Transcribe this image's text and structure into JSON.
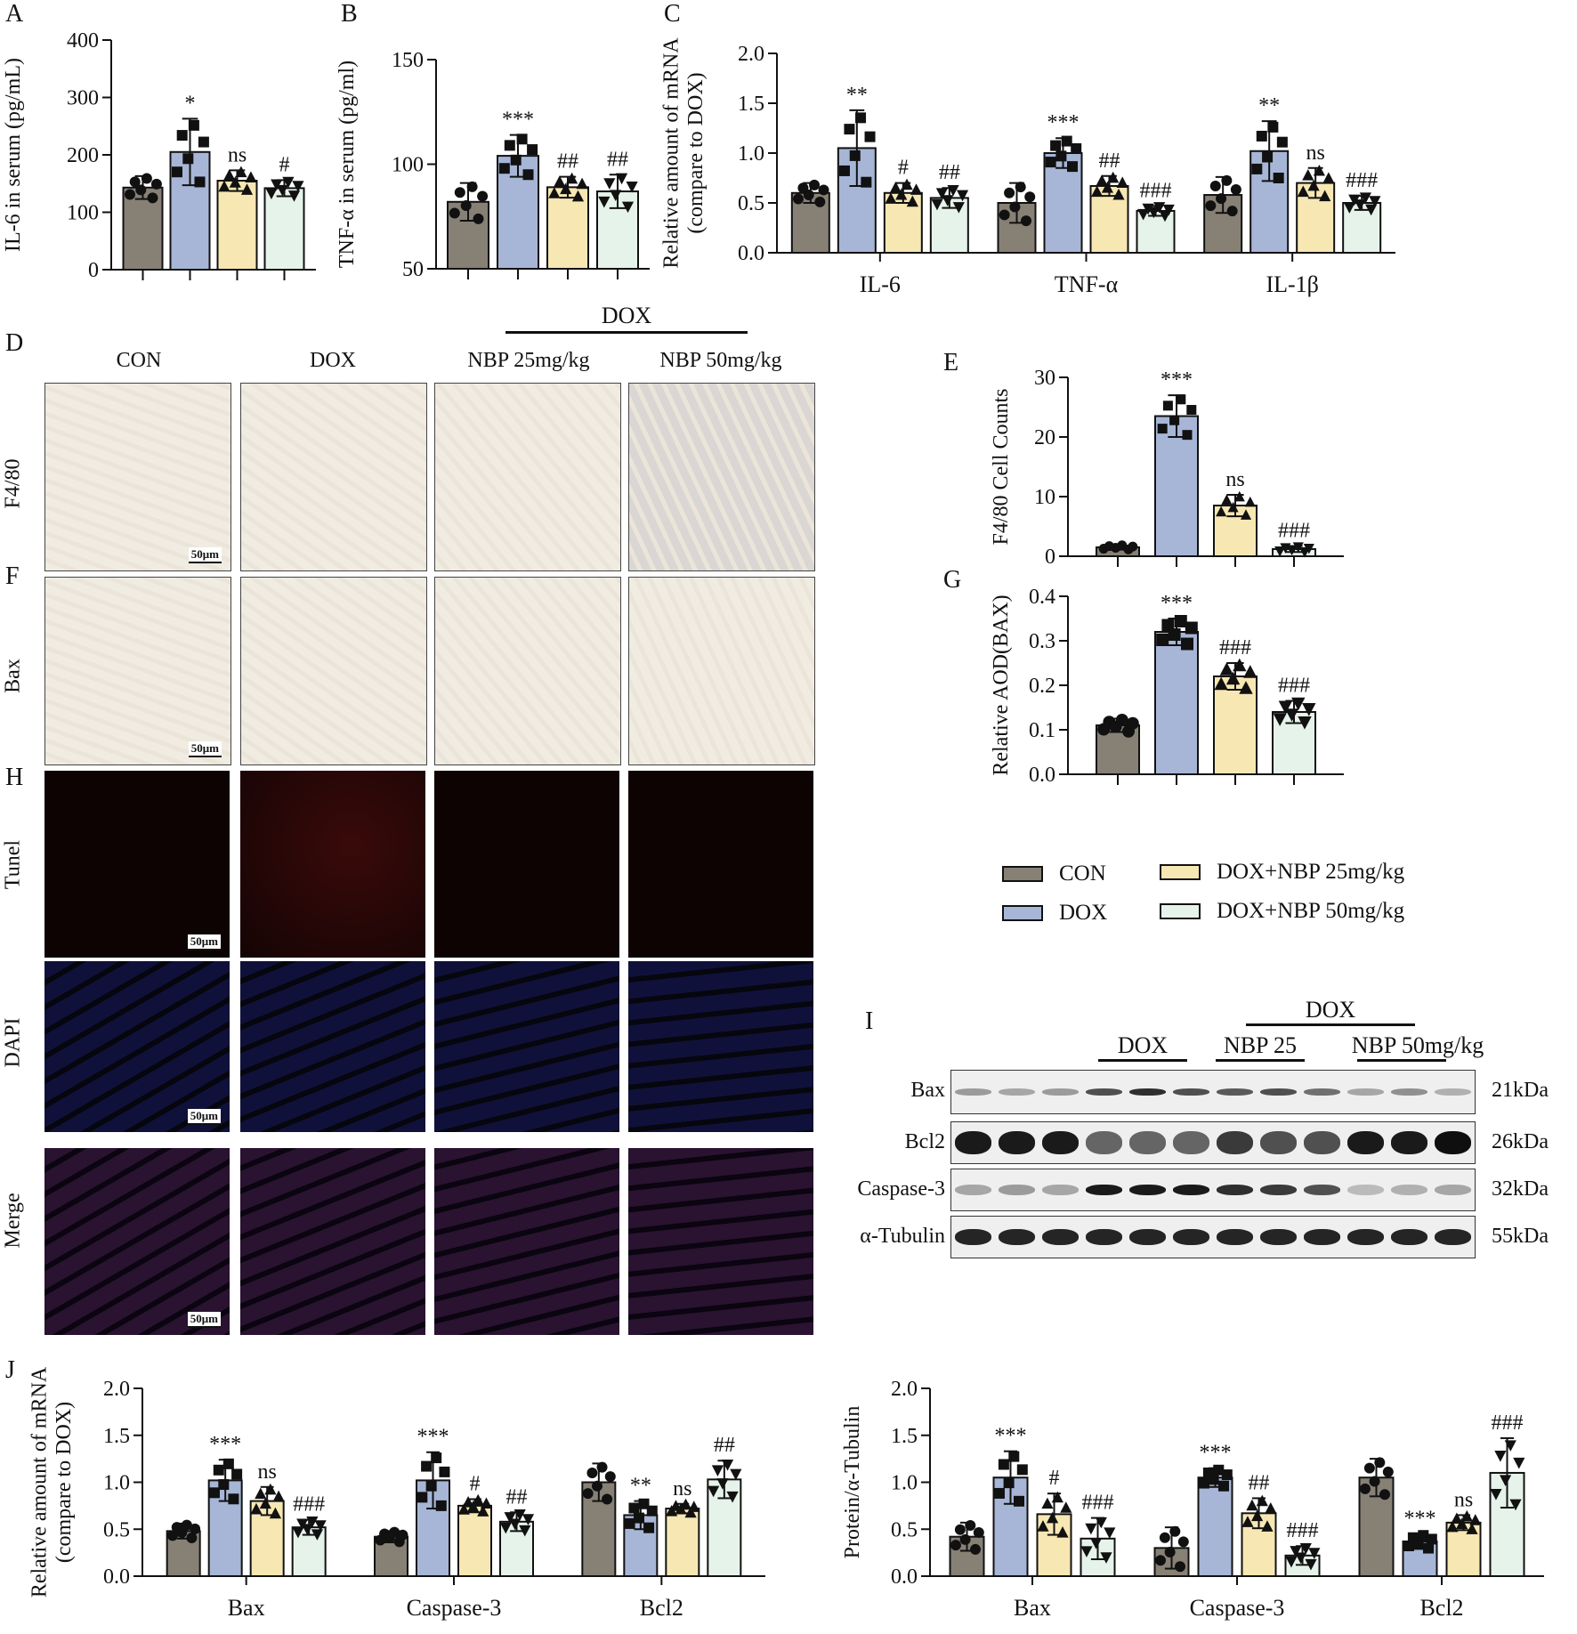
{
  "colors": {
    "CON": "#878075",
    "DOX": "#a7b6d6",
    "NBP25": "#f7e7b3",
    "NBP50": "#e6f3ea"
  },
  "legend": [
    {
      "key": "CON",
      "label": "CON"
    },
    {
      "key": "DOX",
      "label": "DOX"
    },
    {
      "key": "NBP25",
      "label": "DOX+NBP 25mg/kg"
    },
    {
      "key": "NBP50",
      "label": "DOX+NBP 50mg/kg"
    }
  ],
  "panels": {
    "A": "A",
    "B": "B",
    "C": "C",
    "D": "D",
    "E": "E",
    "F": "F",
    "G": "G",
    "H": "H",
    "I": "I",
    "J": "J"
  },
  "micro": {
    "group_bracket": "DOX",
    "columns": [
      "CON",
      "DOX",
      "NBP 25mg/kg",
      "NBP 50mg/kg"
    ],
    "rows": [
      "F4/80",
      "Bax",
      "Tunel",
      "DAPI",
      "Merge"
    ],
    "scale_bar": "50μm"
  },
  "western": {
    "top_group": "DOX",
    "groups": [
      "DOX",
      "NBP 25",
      "NBP 50mg/kg"
    ],
    "proteins": [
      "Bax",
      "Bcl2",
      "Caspase-3",
      "α-Tubulin"
    ],
    "sizes": [
      "21kDa",
      "26kDa",
      "32kDa",
      "55kDa"
    ]
  },
  "chart_data": [
    {
      "id": "A",
      "type": "bar",
      "ylabel": "IL-6 in serum (pg/mL)",
      "ylim": [
        0,
        400
      ],
      "yticks": [
        0,
        100,
        200,
        300,
        400
      ],
      "categories": [
        "CON",
        "DOX",
        "DOX+NBP 25mg/kg",
        "DOX+NBP 50mg/kg"
      ],
      "groups": [
        {
          "name": "",
          "values": [
            143,
            205,
            155,
            142
          ],
          "sd": [
            20,
            58,
            18,
            14
          ],
          "sig": [
            "",
            "*",
            "ns",
            "#"
          ]
        }
      ]
    },
    {
      "id": "B",
      "type": "bar",
      "ylabel": "TNF-α in serum (pg/ml)",
      "ylim": [
        50,
        150
      ],
      "yticks": [
        50,
        100,
        150
      ],
      "categories": [
        "CON",
        "DOX",
        "DOX+NBP 25mg/kg",
        "DOX+NBP 50mg/kg"
      ],
      "groups": [
        {
          "name": "",
          "values": [
            82,
            104,
            89,
            87
          ],
          "sd": [
            9,
            10,
            5,
            8
          ],
          "sig": [
            "",
            "***",
            "##",
            "##"
          ]
        }
      ]
    },
    {
      "id": "C",
      "type": "bar",
      "ylabel": "Relative amount of mRNA (compare to DOX)",
      "ylim": [
        0,
        2
      ],
      "yticks": [
        "0.0",
        "0.5",
        "1.0",
        "1.5",
        "2.0"
      ],
      "categories": [
        "CON",
        "DOX",
        "DOX+NBP 25mg/kg",
        "DOX+NBP 50mg/kg"
      ],
      "groups": [
        {
          "name": "IL-6",
          "values": [
            0.6,
            1.05,
            0.6,
            0.55
          ],
          "sd": [
            0.1,
            0.38,
            0.1,
            0.1
          ],
          "sig": [
            "",
            "**",
            "#",
            "##"
          ]
        },
        {
          "name": "TNF-α",
          "values": [
            0.5,
            1.0,
            0.67,
            0.42
          ],
          "sd": [
            0.2,
            0.15,
            0.1,
            0.05
          ],
          "sig": [
            "",
            "***",
            "##",
            "###"
          ]
        },
        {
          "name": "IL-1β",
          "values": [
            0.58,
            1.02,
            0.7,
            0.5
          ],
          "sd": [
            0.18,
            0.3,
            0.15,
            0.07
          ],
          "sig": [
            "",
            "**",
            "ns",
            "###"
          ]
        }
      ]
    },
    {
      "id": "E",
      "type": "bar",
      "ylabel": "F4/80 Cell Counts",
      "ylim": [
        0,
        30
      ],
      "yticks": [
        0,
        10,
        20,
        30
      ],
      "categories": [
        "CON",
        "DOX",
        "DOX+NBP 25mg/kg",
        "DOX+NBP 50mg/kg"
      ],
      "groups": [
        {
          "name": "",
          "values": [
            1.5,
            23.5,
            8.5,
            1.2
          ],
          "sd": [
            0.4,
            3.5,
            1.8,
            0.5
          ],
          "sig": [
            "",
            "***",
            "ns",
            "###"
          ]
        }
      ]
    },
    {
      "id": "G",
      "type": "bar",
      "ylabel": "Relative AOD(BAX)",
      "ylim": [
        0,
        0.4
      ],
      "yticks": [
        "0.0",
        "0.1",
        "0.2",
        "0.3",
        "0.4"
      ],
      "categories": [
        "CON",
        "DOX",
        "DOX+NBP 25mg/kg",
        "DOX+NBP 50mg/kg"
      ],
      "groups": [
        {
          "name": "",
          "values": [
            0.11,
            0.32,
            0.22,
            0.14
          ],
          "sd": [
            0.015,
            0.03,
            0.03,
            0.025
          ],
          "sig": [
            "",
            "***",
            "###",
            "###"
          ]
        }
      ]
    },
    {
      "id": "J1",
      "type": "bar",
      "ylabel": "Relative amount of mRNA (compare to DOX)",
      "ylim": [
        0,
        2
      ],
      "yticks": [
        "0.0",
        "0.5",
        "1.0",
        "1.5",
        "2.0"
      ],
      "categories": [
        "CON",
        "DOX",
        "DOX+NBP 25mg/kg",
        "DOX+NBP 50mg/kg"
      ],
      "groups": [
        {
          "name": "Bax",
          "values": [
            0.48,
            1.02,
            0.8,
            0.52
          ],
          "sd": [
            0.08,
            0.22,
            0.15,
            0.08
          ],
          "sig": [
            "",
            "***",
            "ns",
            "###"
          ]
        },
        {
          "name": "Caspase-3",
          "values": [
            0.42,
            1.02,
            0.75,
            0.58
          ],
          "sd": [
            0.06,
            0.3,
            0.07,
            0.1
          ],
          "sig": [
            "",
            "***",
            "#",
            "##"
          ]
        },
        {
          "name": "Bcl2",
          "values": [
            1.0,
            0.65,
            0.72,
            1.03
          ],
          "sd": [
            0.2,
            0.15,
            0.05,
            0.2
          ],
          "sig": [
            "",
            "**",
            "ns",
            "##"
          ]
        }
      ]
    },
    {
      "id": "J2",
      "type": "bar",
      "ylabel": "Protein/α-Tubulin",
      "ylim": [
        0,
        2
      ],
      "yticks": [
        "0.0",
        "0.5",
        "1.0",
        "1.5",
        "2.0"
      ],
      "categories": [
        "CON",
        "DOX",
        "DOX+NBP 25mg/kg",
        "DOX+NBP 50mg/kg"
      ],
      "groups": [
        {
          "name": "Bax",
          "values": [
            0.42,
            1.05,
            0.66,
            0.4
          ],
          "sd": [
            0.15,
            0.28,
            0.22,
            0.22
          ],
          "sig": [
            "",
            "***",
            "#",
            "###"
          ]
        },
        {
          "name": "Caspase-3",
          "values": [
            0.3,
            1.05,
            0.67,
            0.22
          ],
          "sd": [
            0.22,
            0.1,
            0.16,
            0.1
          ],
          "sig": [
            "",
            "***",
            "##",
            "###"
          ]
        },
        {
          "name": "Bcl2",
          "values": [
            1.05,
            0.37,
            0.57,
            1.1
          ],
          "sd": [
            0.2,
            0.08,
            0.08,
            0.37
          ],
          "sig": [
            "",
            "***",
            "ns",
            "###"
          ]
        }
      ]
    }
  ]
}
